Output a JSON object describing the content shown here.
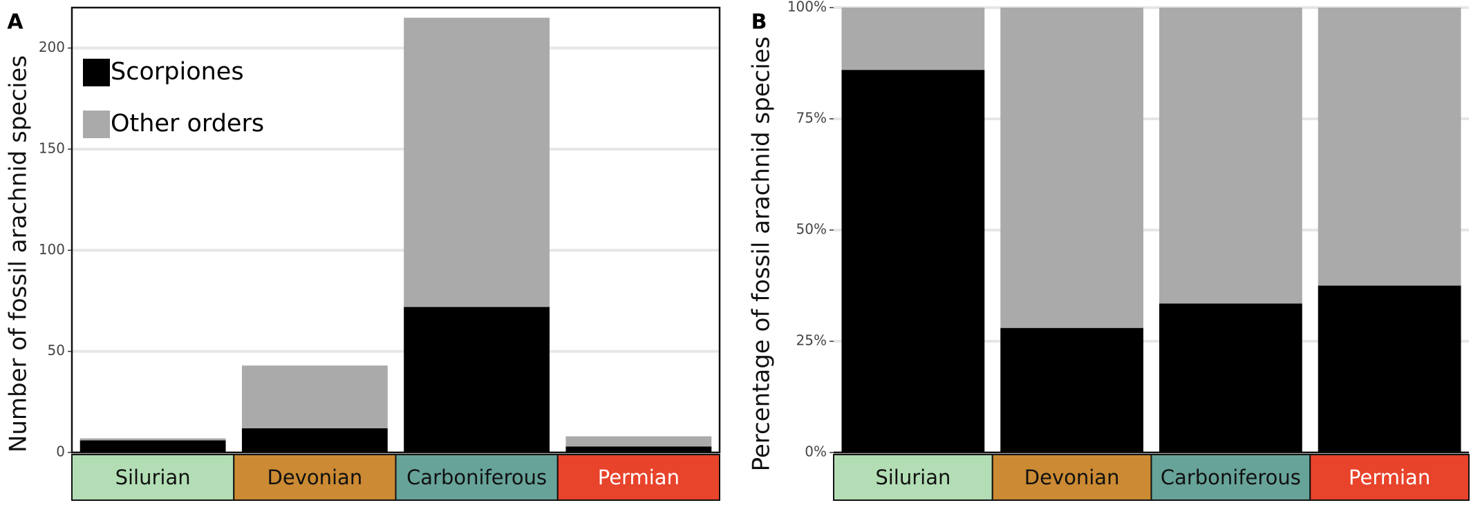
{
  "chart_data": [
    {
      "type": "bar",
      "stacked": true,
      "label": "A",
      "y_label": "Number of fossil arachnid species",
      "categories": [
        "Silurian",
        "Devonian",
        "Carboniferous",
        "Permian"
      ],
      "category_colors": [
        "#b3deb5",
        "#cb8a33",
        "#67a399",
        "#e8432b"
      ],
      "category_text_colors": [
        "#111111",
        "#111111",
        "#111111",
        "#ffffff"
      ],
      "series": [
        {
          "name": "Scorpiones",
          "color": "#000000",
          "values": [
            6,
            12,
            72,
            3
          ]
        },
        {
          "name": "Other orders",
          "color": "#aaaaaa",
          "values": [
            1,
            31,
            143,
            5
          ]
        }
      ],
      "ylim": [
        0,
        220
      ],
      "yticks": [
        0,
        50,
        100,
        150,
        200
      ],
      "grid": true,
      "legend": "top-left",
      "frame": true
    },
    {
      "type": "bar",
      "stacked": true,
      "label": "B",
      "y_label": "Percentage of fossil arachnid species",
      "categories": [
        "Silurian",
        "Devonian",
        "Carboniferous",
        "Permian"
      ],
      "category_colors": [
        "#b3deb5",
        "#cb8a33",
        "#67a399",
        "#e8432b"
      ],
      "category_text_colors": [
        "#111111",
        "#111111",
        "#111111",
        "#ffffff"
      ],
      "series": [
        {
          "color": "#000000",
          "values": [
            86,
            28,
            33.5,
            37.5
          ]
        },
        {
          "color": "#aaaaaa",
          "values": [
            14,
            72,
            66.5,
            62.5
          ]
        }
      ],
      "ylim": [
        0,
        100
      ],
      "yticks": [
        {
          "value": 0,
          "label": "0%"
        },
        {
          "value": 25,
          "label": "25%"
        },
        {
          "value": 50,
          "label": "50%"
        },
        {
          "value": 75,
          "label": "75%"
        },
        {
          "value": 100,
          "label": "100%"
        }
      ],
      "grid": true,
      "frame": false
    }
  ]
}
